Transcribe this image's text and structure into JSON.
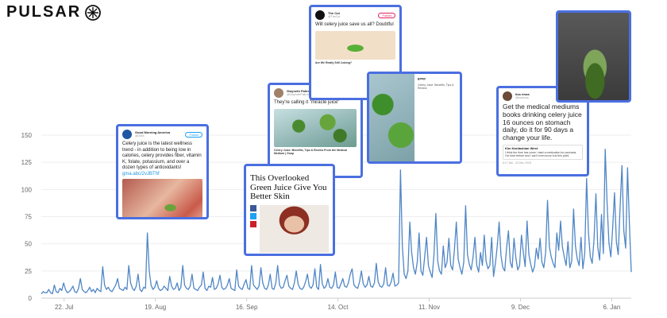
{
  "brand": {
    "name": "PULSAR"
  },
  "colors": {
    "line": "#4f86c6",
    "card_border": "#4a6fe0",
    "axis_text": "#666666",
    "grid": "#eeeeee"
  },
  "chart_data": {
    "type": "line",
    "title": "",
    "xlabel": "",
    "ylabel": "",
    "ylim": [
      0,
      150
    ],
    "yticks": [
      0,
      25,
      50,
      75,
      100,
      125,
      150
    ],
    "xtick_labels": [
      "22. Jul",
      "19. Aug",
      "16. Sep",
      "14. Oct",
      "11. Nov",
      "9. Dec",
      "6. Jan"
    ],
    "x_start": "2018-07-15",
    "x_end": "2019-01-12",
    "series": [
      {
        "values": [
          4,
          6,
          5,
          5,
          8,
          5,
          4,
          12,
          6,
          5,
          9,
          7,
          14,
          8,
          5,
          6,
          8,
          11,
          6,
          5,
          9,
          18,
          8,
          6,
          5,
          7,
          10,
          6,
          8,
          5,
          9,
          7,
          6,
          29,
          12,
          8,
          10,
          7,
          6,
          9,
          12,
          18,
          9,
          8,
          7,
          10,
          8,
          30,
          14,
          9,
          7,
          11,
          22,
          8,
          6,
          10,
          9,
          60,
          25,
          12,
          8,
          10,
          16,
          9,
          7,
          8,
          11,
          9,
          7,
          20,
          11,
          8,
          9,
          14,
          7,
          10,
          30,
          12,
          9,
          8,
          11,
          22,
          9,
          8,
          7,
          10,
          12,
          24,
          9,
          7,
          11,
          10,
          19,
          8,
          9,
          13,
          21,
          10,
          8,
          9,
          12,
          18,
          9,
          8,
          7,
          26,
          11,
          9,
          8,
          13,
          17,
          9,
          8,
          30,
          12,
          10,
          8,
          11,
          28,
          14,
          9,
          8,
          12,
          22,
          9,
          8,
          14,
          30,
          12,
          9,
          10,
          16,
          21,
          11,
          9,
          8,
          14,
          25,
          13,
          9,
          8,
          10,
          15,
          22,
          11,
          9,
          12,
          27,
          10,
          8,
          31,
          13,
          9,
          11,
          18,
          10,
          9,
          12,
          24,
          10,
          9,
          13,
          18,
          11,
          10,
          14,
          22,
          27,
          12,
          10,
          9,
          15,
          25,
          13,
          10,
          12,
          20,
          11,
          10,
          14,
          32,
          15,
          11,
          10,
          13,
          28,
          12,
          11,
          15,
          23,
          11,
          12,
          14,
          118,
          48,
          22,
          18,
          25,
          70,
          42,
          28,
          22,
          33,
          60,
          25,
          21,
          38,
          56,
          30,
          24,
          19,
          40,
          78,
          34,
          25,
          22,
          48,
          28,
          33,
          55,
          30,
          26,
          45,
          70,
          36,
          28,
          22,
          33,
          85,
          40,
          31,
          26,
          38,
          56,
          30,
          24,
          42,
          30,
          58,
          34,
          27,
          30,
          56,
          20,
          32,
          48,
          70,
          39,
          28,
          25,
          46,
          62,
          33,
          28,
          55,
          37,
          26,
          30,
          58,
          42,
          29,
          71,
          40,
          31,
          24,
          29,
          46,
          36,
          55,
          33,
          28,
          42,
          90,
          47,
          38,
          32,
          28,
          60,
          44,
          71,
          47,
          38,
          30,
          52,
          28,
          34,
          82,
          48,
          36,
          30,
          56,
          27,
          41,
          110,
          60,
          38,
          32,
          54,
          96,
          47,
          35,
          77,
          41,
          137,
          88,
          51,
          38,
          64,
          97,
          52,
          40,
          84,
          122,
          62,
          46,
          120,
          68,
          24
        ]
      }
    ]
  },
  "cards": {
    "gma": {
      "account": "Good Morning America",
      "handle": "@GMA",
      "follow": "Follow",
      "text": "Celery juice is the latest wellness trend - in addition to being low in calories, celery provides fiber, vitamin K, folate, potassium, and over a dozen types of antioxidants!",
      "link": "gma.abc/2vJBThf"
    },
    "gwyneth": {
      "account": "Gwyneth Paltrow",
      "handle": "@GwynethPaltrow",
      "text": "They're calling it \"miracle juice\"",
      "caption": "Celery Juice: Benefits, Tips & Review From the Medical Medium | Goop"
    },
    "thecut": {
      "account": "The Cut",
      "handle": "@TheCut",
      "follow": "Follow",
      "text": "Will celery juice save us all? Doubtful",
      "caption": "Are We Really Still Juicing?"
    },
    "goop": {
      "account": "goop",
      "caption": "Celery Juice: Benefits, Tips & Review"
    },
    "byrdie": {
      "headline": "This Overlooked Green Juice Give You Better Skin"
    },
    "lisa": {
      "account": "lisa rinna",
      "handle": "@lisarinna",
      "text": "Get the medical mediums books drinking celery juice 16 ounces on stomach daily, do it for 90 days a change your life.",
      "quote_author": "Kim Kardashian West",
      "quote_text": "I think the time has come I start a medication for psoriasis. I've tried before and I can't even know it at this point.",
      "time": "6:17 AM - 24 Dec 2018"
    }
  }
}
